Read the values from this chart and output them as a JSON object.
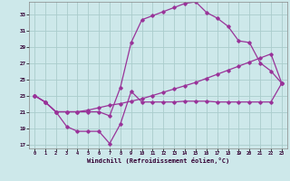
{
  "xlabel": "Windchill (Refroidissement éolien,°C)",
  "xlim": [
    -0.5,
    23.5
  ],
  "ylim": [
    16.5,
    34.5
  ],
  "yticks": [
    17,
    19,
    21,
    23,
    25,
    27,
    29,
    31,
    33
  ],
  "xticks": [
    0,
    1,
    2,
    3,
    4,
    5,
    6,
    7,
    8,
    9,
    10,
    11,
    12,
    13,
    14,
    15,
    16,
    17,
    18,
    19,
    20,
    21,
    22,
    23
  ],
  "bg_color": "#cde8ea",
  "grid_color": "#aacccc",
  "line_color": "#993399",
  "line1_x": [
    0,
    1,
    2,
    3,
    4,
    5,
    6,
    7,
    8,
    9,
    10,
    11,
    12,
    13,
    14,
    15,
    16,
    17,
    18,
    19,
    20,
    21,
    22,
    23
  ],
  "line1_y": [
    23,
    22.2,
    21,
    19.2,
    18.6,
    18.6,
    18.6,
    17.1,
    19.5,
    23.5,
    22.2,
    22.2,
    22.2,
    22.2,
    22.3,
    22.3,
    22.3,
    22.2,
    22.2,
    22.2,
    22.2,
    22.2,
    22.2,
    24.5
  ],
  "line2_x": [
    0,
    1,
    2,
    3,
    4,
    5,
    6,
    7,
    8,
    9,
    10,
    11,
    12,
    13,
    14,
    15,
    16,
    17,
    18,
    19,
    20,
    21,
    22,
    23
  ],
  "line2_y": [
    23,
    22.2,
    21,
    21,
    21,
    21,
    21,
    20.5,
    24,
    29.5,
    32.3,
    32.8,
    33.3,
    33.8,
    34.3,
    34.5,
    33.2,
    32.5,
    31.5,
    29.7,
    29.5,
    27,
    26,
    24.5
  ],
  "line3_x": [
    0,
    1,
    2,
    3,
    4,
    5,
    6,
    7,
    8,
    9,
    10,
    11,
    12,
    13,
    14,
    15,
    16,
    17,
    18,
    19,
    20,
    21,
    22,
    23
  ],
  "line3_y": [
    23,
    22.2,
    21,
    21,
    21,
    21.2,
    21.5,
    21.8,
    22.0,
    22.3,
    22.6,
    23.0,
    23.4,
    23.8,
    24.2,
    24.6,
    25.1,
    25.6,
    26.1,
    26.6,
    27.1,
    27.6,
    28.1,
    24.5
  ]
}
